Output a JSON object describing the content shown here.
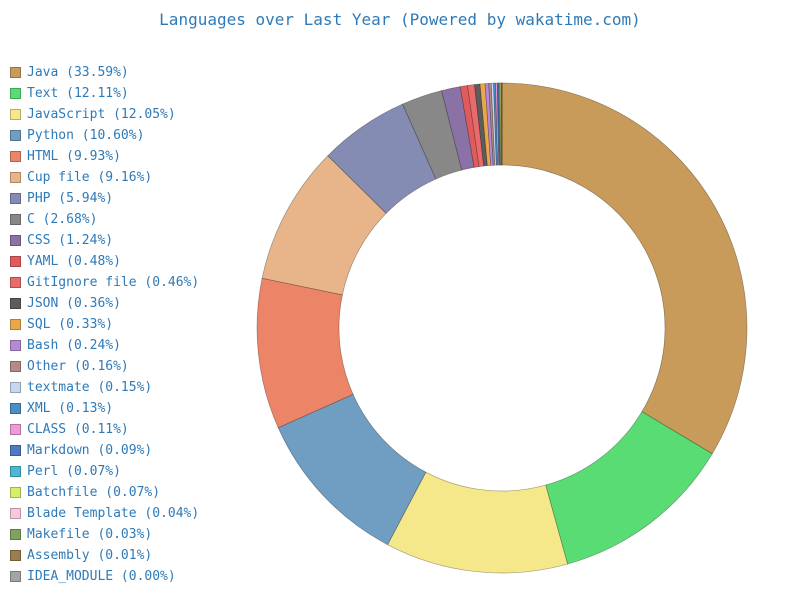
{
  "chart_data": {
    "type": "pie",
    "style": "donut",
    "title": "Languages over Last Year (Powered by wakatime.com)",
    "legend_position": "left",
    "slices": [
      {
        "label": "Java (33.59%)",
        "value": 33.59,
        "color": "#c89b5a"
      },
      {
        "label": "Text (12.11%)",
        "value": 12.11,
        "color": "#59dc73"
      },
      {
        "label": "JavaScript (12.05%)",
        "value": 12.05,
        "color": "#f5e88a"
      },
      {
        "label": "Python (10.60%)",
        "value": 10.6,
        "color": "#709dc2"
      },
      {
        "label": "HTML (9.93%)",
        "value": 9.93,
        "color": "#ec8468"
      },
      {
        "label": "Cup file (9.16%)",
        "value": 9.16,
        "color": "#e8b58a"
      },
      {
        "label": "PHP (5.94%)",
        "value": 5.94,
        "color": "#858cb3"
      },
      {
        "label": "C (2.68%)",
        "value": 2.68,
        "color": "#888888"
      },
      {
        "label": "CSS (1.24%)",
        "value": 1.24,
        "color": "#8b72a6"
      },
      {
        "label": "YAML (0.48%)",
        "value": 0.48,
        "color": "#e05c5c"
      },
      {
        "label": "GitIgnore file (0.46%)",
        "value": 0.46,
        "color": "#e86a6a"
      },
      {
        "label": "JSON (0.36%)",
        "value": 0.36,
        "color": "#5c5c5c"
      },
      {
        "label": "SQL (0.33%)",
        "value": 0.33,
        "color": "#eba84a"
      },
      {
        "label": "Bash (0.24%)",
        "value": 0.24,
        "color": "#b48ad4"
      },
      {
        "label": "Other (0.16%)",
        "value": 0.16,
        "color": "#b48a82"
      },
      {
        "label": "textmate (0.15%)",
        "value": 0.15,
        "color": "#c6d8f0"
      },
      {
        "label": "XML (0.13%)",
        "value": 0.13,
        "color": "#4a8ec4"
      },
      {
        "label": "CLASS (0.11%)",
        "value": 0.11,
        "color": "#ee9ad6"
      },
      {
        "label": "Markdown (0.09%)",
        "value": 0.09,
        "color": "#4f79c4"
      },
      {
        "label": "Perl (0.07%)",
        "value": 0.07,
        "color": "#4cb8d4"
      },
      {
        "label": "Batchfile (0.07%)",
        "value": 0.07,
        "color": "#d4ef6a"
      },
      {
        "label": "Blade Template (0.04%)",
        "value": 0.04,
        "color": "#f8c8dc"
      },
      {
        "label": "Makefile (0.03%)",
        "value": 0.03,
        "color": "#7ea35c"
      },
      {
        "label": "Assembly (0.01%)",
        "value": 0.01,
        "color": "#9a7e50"
      },
      {
        "label": "IDEA_MODULE (0.00%)",
        "value": 0.0,
        "color": "#a4a4a4"
      }
    ]
  }
}
